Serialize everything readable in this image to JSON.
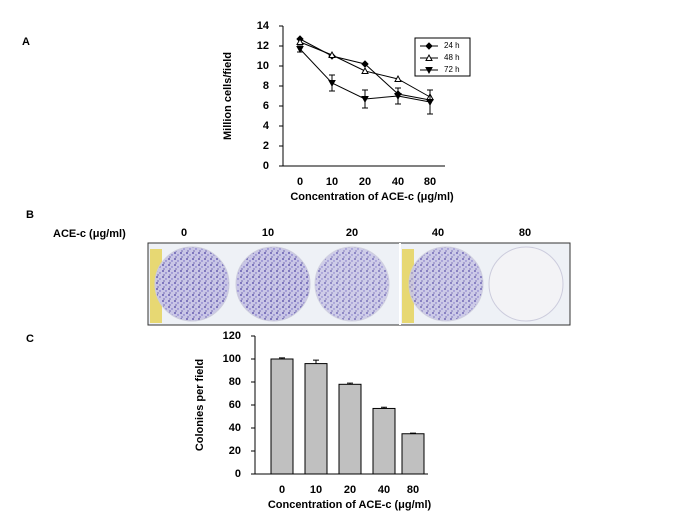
{
  "figure": {
    "panel_labels": [
      "A",
      "B",
      "C"
    ],
    "plate_axis_label": "ACE-c (μg/ml)",
    "plate_doses": [
      "0",
      "10",
      "20",
      "40",
      "80"
    ]
  },
  "chart_data": [
    {
      "type": "line",
      "ylabel": "Million cells/field",
      "xlabel": "Concentration of ACE-c (μg/ml)",
      "categories": [
        "0",
        "10",
        "20",
        "40",
        "80"
      ],
      "ylim": [
        0,
        14
      ],
      "yticks": [
        0,
        2,
        4,
        6,
        8,
        10,
        12,
        14
      ],
      "legend": "upper right",
      "series": [
        {
          "name": "24 h",
          "color": "#000000",
          "marker": "diamond",
          "values": [
            12.7,
            11.0,
            10.2,
            7.2,
            6.6
          ]
        },
        {
          "name": "48 h",
          "color": "#000000",
          "marker": "triangle-open",
          "values": [
            12.4,
            11.1,
            9.5,
            8.7,
            6.9
          ]
        },
        {
          "name": "72 h",
          "color": "#000000",
          "marker": "triangle-down",
          "values": [
            11.7,
            8.3,
            6.7,
            7.0,
            6.4
          ],
          "errors": [
            0.3,
            0.8,
            0.9,
            0.8,
            1.2
          ]
        }
      ]
    },
    {
      "type": "bar",
      "ylabel": "Colonies per field",
      "xlabel": "Concentration of ACE-c (μg/ml)",
      "categories": [
        "0",
        "10",
        "20",
        "40",
        "80"
      ],
      "values": [
        100,
        96,
        78,
        57,
        35
      ],
      "errors": [
        1,
        3,
        1,
        1,
        0.5
      ],
      "color": "#c0c0c0",
      "ylim": [
        0,
        120
      ],
      "yticks": [
        0,
        20,
        40,
        60,
        80,
        100,
        120
      ]
    }
  ]
}
